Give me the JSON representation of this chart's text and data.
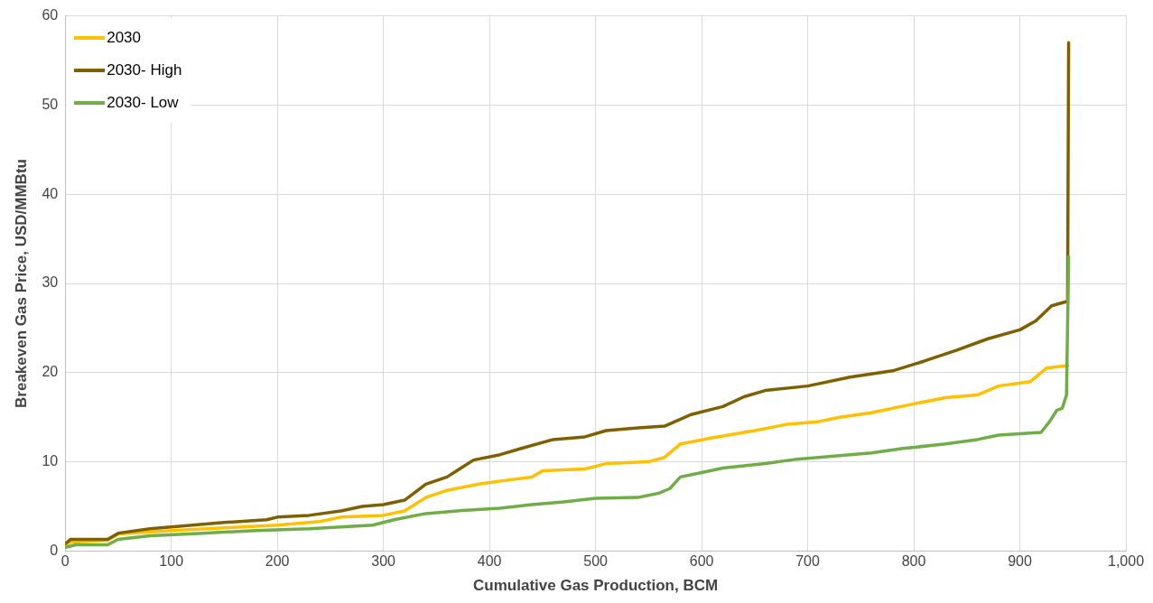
{
  "chart_data": {
    "type": "line",
    "xlabel": "Cumulative Gas Production, BCM",
    "ylabel": "Breakeven Gas Price, USD/MMBtu",
    "xlim": [
      0,
      1000
    ],
    "xticks": [
      0,
      100,
      200,
      300,
      400,
      500,
      600,
      700,
      800,
      900,
      {
        "value": 1000,
        "label": "1,000"
      }
    ],
    "ylim": [
      0,
      60
    ],
    "yticks": [
      0,
      10,
      20,
      30,
      40,
      50,
      60
    ],
    "grid": true,
    "legend": "top left",
    "marker": "none",
    "line_style": "solid",
    "series": [
      {
        "name": "2030",
        "color": "#ffc000",
        "x": [
          0,
          5,
          40,
          50,
          100,
          150,
          200,
          240,
          260,
          300,
          320,
          340,
          360,
          390,
          420,
          440,
          450,
          490,
          510,
          550,
          565,
          580,
          610,
          650,
          680,
          710,
          730,
          760,
          800,
          830,
          860,
          880,
          910,
          925,
          945
        ],
        "values": [
          0.6,
          1.0,
          1.2,
          1.9,
          2.3,
          2.6,
          2.9,
          3.3,
          3.8,
          4.0,
          4.5,
          6.0,
          6.8,
          7.5,
          8.0,
          8.3,
          9.0,
          9.2,
          9.8,
          10.0,
          10.5,
          12.0,
          12.7,
          13.5,
          14.2,
          14.5,
          15.0,
          15.5,
          16.5,
          17.2,
          17.5,
          18.5,
          19.0,
          20.5,
          20.8
        ]
      },
      {
        "name": "2030- High",
        "color": "#7f6000",
        "x": [
          0,
          5,
          40,
          50,
          80,
          110,
          150,
          190,
          200,
          230,
          260,
          280,
          300,
          320,
          340,
          360,
          385,
          410,
          430,
          460,
          490,
          510,
          540,
          565,
          590,
          620,
          640,
          660,
          700,
          740,
          780,
          810,
          840,
          870,
          900,
          915,
          930,
          945,
          946
        ],
        "values": [
          0.8,
          1.3,
          1.3,
          2.0,
          2.5,
          2.8,
          3.2,
          3.5,
          3.8,
          4.0,
          4.5,
          5.0,
          5.2,
          5.7,
          7.5,
          8.3,
          10.2,
          10.8,
          11.5,
          12.5,
          12.8,
          13.5,
          13.8,
          14.0,
          15.3,
          16.2,
          17.3,
          18.0,
          18.5,
          19.5,
          20.2,
          21.3,
          22.5,
          23.8,
          24.8,
          25.8,
          27.5,
          28.0,
          57.0
        ]
      },
      {
        "name": "2030- Low",
        "color": "#70ad47",
        "x": [
          0,
          10,
          40,
          50,
          80,
          130,
          180,
          230,
          260,
          290,
          310,
          340,
          370,
          410,
          440,
          470,
          500,
          540,
          560,
          570,
          580,
          600,
          620,
          660,
          690,
          720,
          760,
          790,
          830,
          860,
          880,
          920,
          928,
          935,
          940,
          944,
          946
        ],
        "values": [
          0.4,
          0.7,
          0.7,
          1.3,
          1.7,
          2.0,
          2.3,
          2.5,
          2.7,
          2.9,
          3.5,
          4.2,
          4.5,
          4.8,
          5.2,
          5.5,
          5.9,
          6.0,
          6.5,
          7.0,
          8.3,
          8.8,
          9.3,
          9.8,
          10.3,
          10.6,
          11.0,
          11.5,
          12.0,
          12.5,
          13.0,
          13.3,
          14.5,
          15.8,
          16.0,
          17.5,
          33.0
        ]
      }
    ]
  }
}
